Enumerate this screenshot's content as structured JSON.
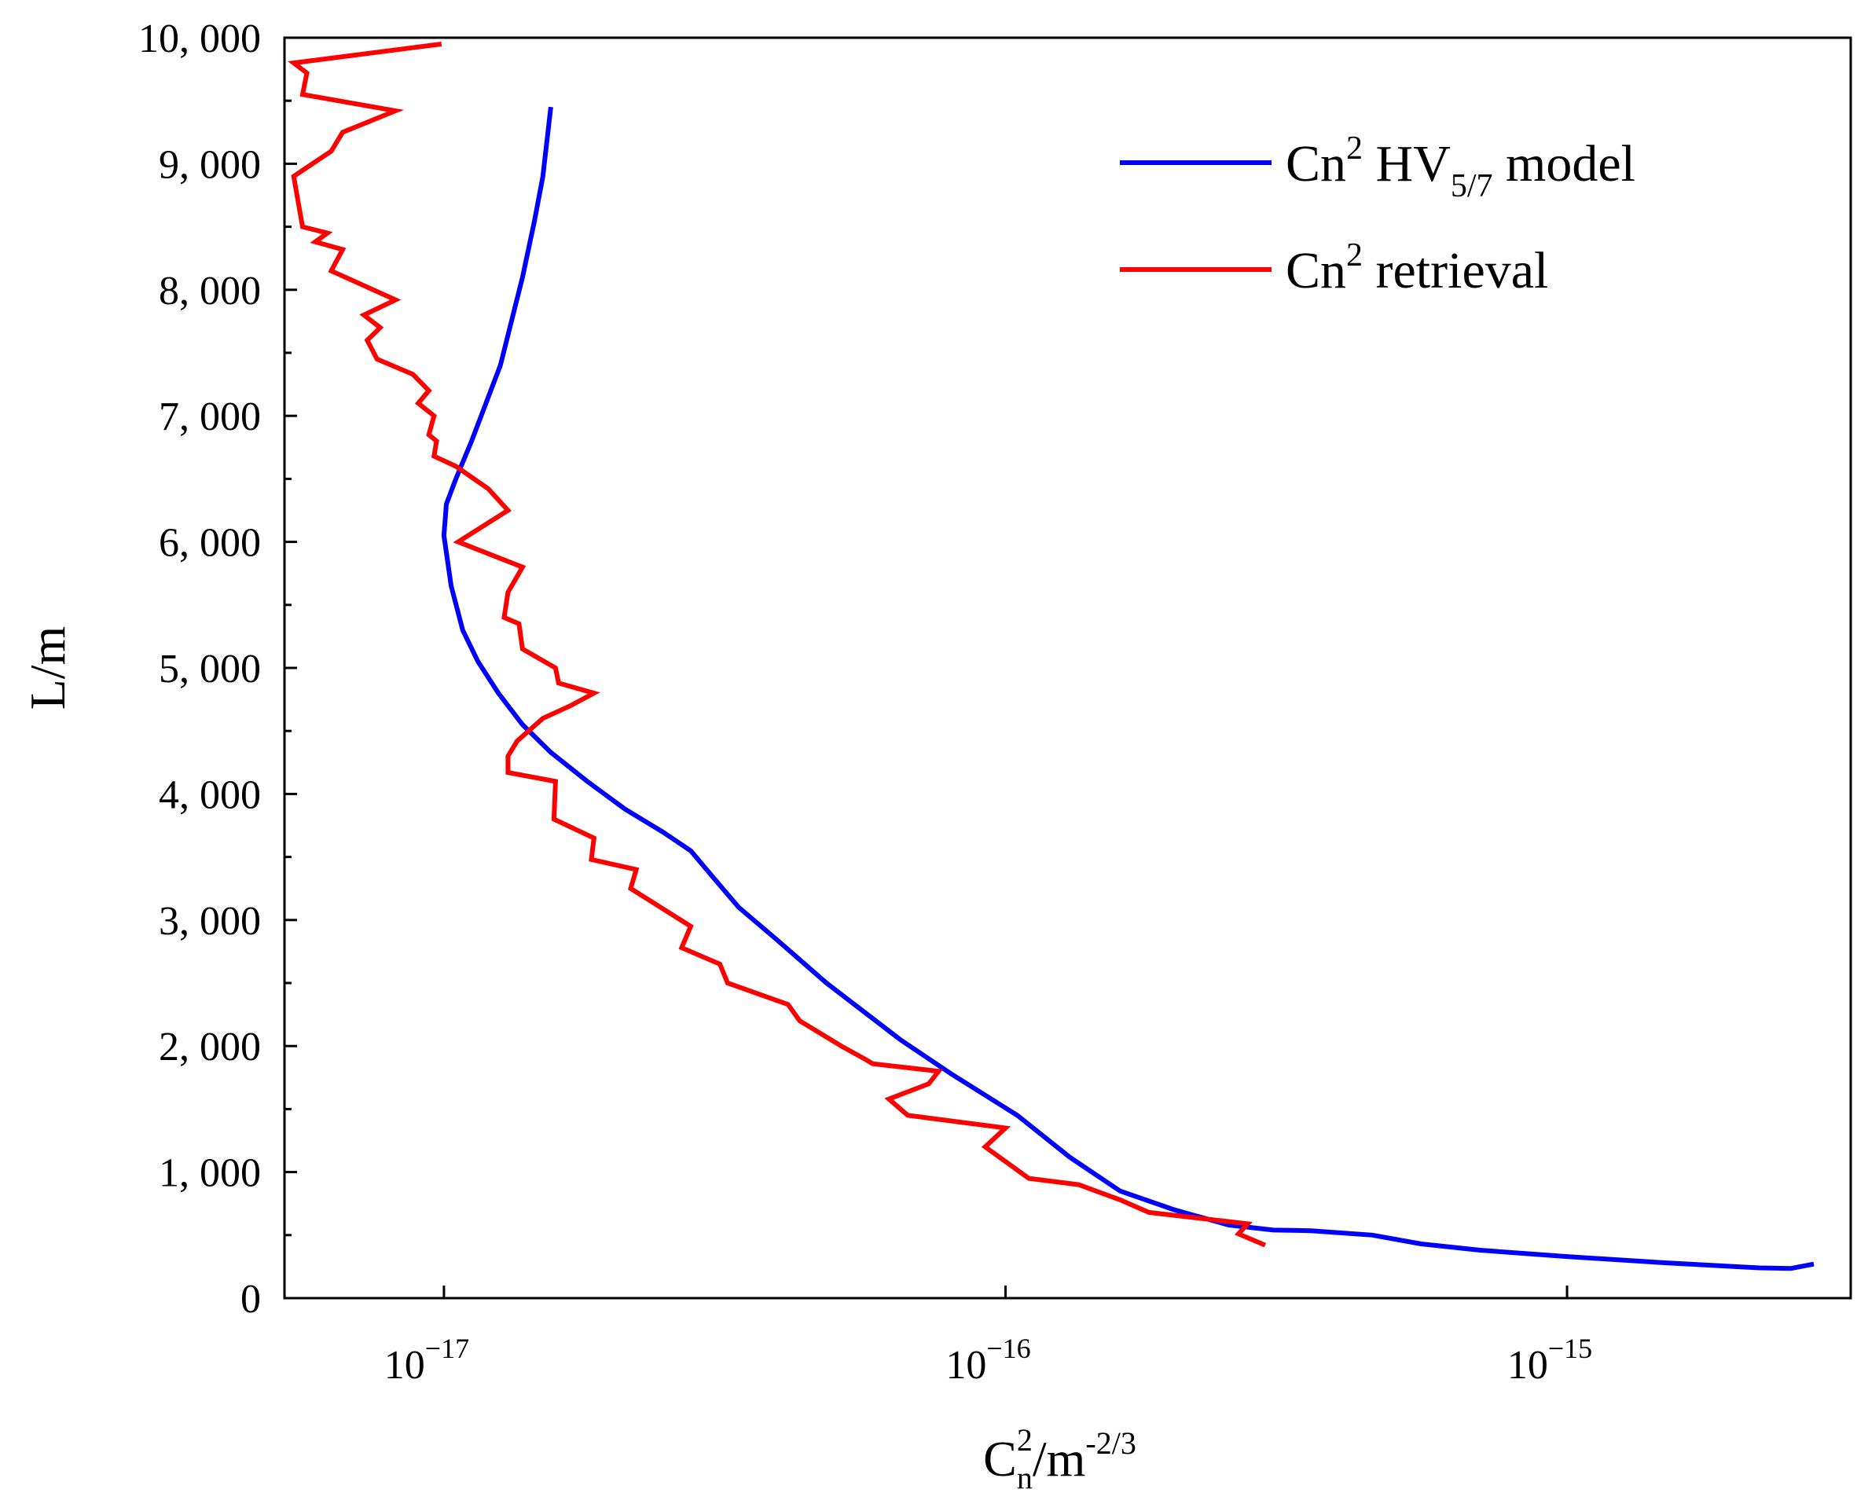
{
  "chart_data": {
    "type": "line",
    "title": "",
    "xlabel": {
      "base": "C",
      "sub": "n",
      "sup": "2",
      "rest": "/m",
      "rest_sup": "-2/3"
    },
    "ylabel": "L/m",
    "x_scale": "log",
    "xlim": [
      5.2e-18,
      3.2e-15
    ],
    "ylim": [
      0,
      10000
    ],
    "x_ticks": [
      {
        "value": 1e-17,
        "base": "10",
        "exp": "−17"
      },
      {
        "value": 1e-16,
        "base": "10",
        "exp": "−16"
      },
      {
        "value": 1e-15,
        "base": "10",
        "exp": "−15"
      }
    ],
    "y_ticks": [
      {
        "value": 0,
        "label": "0"
      },
      {
        "value": 1000,
        "label": "1, 000"
      },
      {
        "value": 2000,
        "label": "2, 000"
      },
      {
        "value": 3000,
        "label": "3, 000"
      },
      {
        "value": 4000,
        "label": "4, 000"
      },
      {
        "value": 5000,
        "label": "5, 000"
      },
      {
        "value": 6000,
        "label": "6, 000"
      },
      {
        "value": 7000,
        "label": "7, 000"
      },
      {
        "value": 8000,
        "label": "8, 000"
      },
      {
        "value": 9000,
        "label": "9, 000"
      },
      {
        "value": 10000,
        "label": "10, 000"
      }
    ],
    "y_minor_step": 500,
    "grid": false,
    "legend_position": "top-right",
    "series": [
      {
        "name": "Cn2 HV5/7 model",
        "legend": {
          "prefix": "Cn",
          "sup": "2",
          "mid": " HV",
          "sub": "5/7",
          "suffix": " model"
        },
        "color": "#0000ff",
        "points": [
          [
            1.55e-17,
            9450
          ],
          [
            1.5e-17,
            8900
          ],
          [
            1.45e-17,
            8550
          ],
          [
            1.38e-17,
            8100
          ],
          [
            1.26e-17,
            7400
          ],
          [
            1.12e-17,
            6800
          ],
          [
            1.05e-17,
            6500
          ],
          [
            1.01e-17,
            6300
          ],
          [
            1e-17,
            6050
          ],
          [
            1.03e-17,
            5650
          ],
          [
            1.08e-17,
            5300
          ],
          [
            1.15e-17,
            5050
          ],
          [
            1.25e-17,
            4800
          ],
          [
            1.38e-17,
            4550
          ],
          [
            1.55e-17,
            4330
          ],
          [
            1.8e-17,
            4100
          ],
          [
            2.1e-17,
            3880
          ],
          [
            2.45e-17,
            3700
          ],
          [
            2.75e-17,
            3550
          ],
          [
            3e-17,
            3350
          ],
          [
            3.35e-17,
            3100
          ],
          [
            3.9e-17,
            2850
          ],
          [
            4.8e-17,
            2500
          ],
          [
            6.5e-17,
            2050
          ],
          [
            8e-17,
            1780
          ],
          [
            1.05e-16,
            1450
          ],
          [
            1.3e-16,
            1120
          ],
          [
            1.6e-16,
            850
          ],
          [
            2e-16,
            700
          ],
          [
            2.5e-16,
            580
          ],
          [
            3e-16,
            540
          ],
          [
            3.5e-16,
            535
          ],
          [
            4.5e-16,
            500
          ],
          [
            5.5e-16,
            430
          ],
          [
            7e-16,
            380
          ],
          [
            1e-15,
            330
          ],
          [
            1.5e-15,
            280
          ],
          [
            2.2e-15,
            240
          ],
          [
            2.5e-15,
            235
          ],
          [
            2.75e-15,
            270
          ]
        ]
      },
      {
        "name": "Cn2 retrieval",
        "legend": {
          "prefix": "Cn",
          "sup": "2",
          "mid": " retrieval",
          "sub": "",
          "suffix": ""
        },
        "color": "#ff0000",
        "points": [
          [
            9.9e-18,
            9950
          ],
          [
            5.4e-18,
            9800
          ],
          [
            5.7e-18,
            9720
          ],
          [
            5.6e-18,
            9550
          ],
          [
            8.2e-18,
            9420
          ],
          [
            6.6e-18,
            9250
          ],
          [
            6.3e-18,
            9100
          ],
          [
            5.4e-18,
            8900
          ],
          [
            5.6e-18,
            8500
          ],
          [
            6.2e-18,
            8450
          ],
          [
            5.9e-18,
            8380
          ],
          [
            6.6e-18,
            8320
          ],
          [
            6.3e-18,
            8150
          ],
          [
            8.2e-18,
            7920
          ],
          [
            7.2e-18,
            7800
          ],
          [
            7.7e-18,
            7700
          ],
          [
            7.3e-18,
            7600
          ],
          [
            7.6e-18,
            7450
          ],
          [
            8.8e-18,
            7330
          ],
          [
            9.4e-18,
            7200
          ],
          [
            9e-18,
            7100
          ],
          [
            9.6e-18,
            7000
          ],
          [
            9.4e-18,
            6850
          ],
          [
            9.7e-18,
            6800
          ],
          [
            9.6e-18,
            6680
          ],
          [
            1.05e-17,
            6600
          ],
          [
            1.2e-17,
            6420
          ],
          [
            1.3e-17,
            6250
          ],
          [
            1.06e-17,
            6000
          ],
          [
            1.38e-17,
            5800
          ],
          [
            1.3e-17,
            5600
          ],
          [
            1.28e-17,
            5400
          ],
          [
            1.36e-17,
            5350
          ],
          [
            1.38e-17,
            5150
          ],
          [
            1.58e-17,
            5000
          ],
          [
            1.6e-17,
            4880
          ],
          [
            1.85e-17,
            4800
          ],
          [
            1.68e-17,
            4700
          ],
          [
            1.5e-17,
            4600
          ],
          [
            1.35e-17,
            4420
          ],
          [
            1.3e-17,
            4300
          ],
          [
            1.3e-17,
            4170
          ],
          [
            1.58e-17,
            4100
          ],
          [
            1.57e-17,
            3800
          ],
          [
            1.85e-17,
            3650
          ],
          [
            1.83e-17,
            3480
          ],
          [
            2.2e-17,
            3400
          ],
          [
            2.15e-17,
            3250
          ],
          [
            2.75e-17,
            2950
          ],
          [
            2.65e-17,
            2780
          ],
          [
            3.1e-17,
            2650
          ],
          [
            3.2e-17,
            2500
          ],
          [
            4.1e-17,
            2330
          ],
          [
            4.3e-17,
            2200
          ],
          [
            5.1e-17,
            2000
          ],
          [
            5.6e-17,
            1900
          ],
          [
            5.8e-17,
            1860
          ],
          [
            7.6e-17,
            1800
          ],
          [
            7.3e-17,
            1700
          ],
          [
            6.2e-17,
            1580
          ],
          [
            6.7e-17,
            1450
          ],
          [
            1e-16,
            1350
          ],
          [
            9.2e-17,
            1200
          ],
          [
            1.1e-16,
            950
          ],
          [
            1.35e-16,
            900
          ],
          [
            1.6e-16,
            780
          ],
          [
            1.8e-16,
            680
          ],
          [
            2.7e-16,
            590
          ],
          [
            2.6e-16,
            510
          ],
          [
            2.9e-16,
            420
          ]
        ]
      }
    ]
  }
}
